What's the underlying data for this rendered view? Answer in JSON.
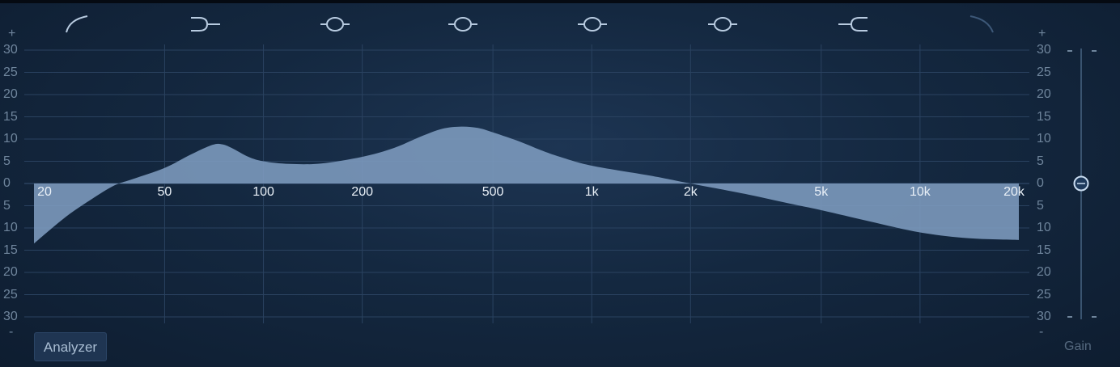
{
  "band_icons": [
    {
      "name": "low-cut-icon"
    },
    {
      "name": "low-shelf-icon"
    },
    {
      "name": "parametric-band-1-icon"
    },
    {
      "name": "parametric-band-2-icon"
    },
    {
      "name": "parametric-band-3-icon"
    },
    {
      "name": "parametric-band-4-icon"
    },
    {
      "name": "high-shelf-icon"
    },
    {
      "name": "high-cut-icon"
    }
  ],
  "db_scale": {
    "top_symbol": "+",
    "bottom_symbol": "-",
    "labels": [
      "30",
      "25",
      "20",
      "15",
      "10",
      "5",
      "0",
      "5",
      "10",
      "15",
      "20",
      "25",
      "30"
    ]
  },
  "freq_labels": [
    "20",
    "50",
    "100",
    "200",
    "500",
    "1k",
    "2k",
    "5k",
    "10k",
    "20k"
  ],
  "analyzer_button": "Analyzer",
  "gain_label": "Gain",
  "colors": {
    "curve_fill": "#7e9cbf",
    "grid": "#2a4260",
    "axis_text": "#6f859c",
    "freq_text": "#e9f0f7"
  },
  "chart_data": {
    "type": "area",
    "x_scale": "log",
    "xlim": [
      20,
      20000
    ],
    "ylim": [
      -30,
      30
    ],
    "x_ticks": [
      20,
      50,
      100,
      200,
      500,
      1000,
      2000,
      5000,
      10000,
      20000
    ],
    "curve": {
      "x": [
        20,
        25,
        30,
        35,
        40,
        50,
        60,
        70,
        75,
        80,
        90,
        100,
        120,
        150,
        200,
        250,
        300,
        350,
        400,
        450,
        500,
        600,
        700,
        800,
        1000,
        1500,
        2000,
        3000,
        4000,
        5000,
        7000,
        10000,
        14000,
        20000
      ],
      "y": [
        -13.5,
        -7.5,
        -3.5,
        -0.5,
        1.0,
        3.5,
        6.5,
        8.7,
        8.8,
        8.0,
        6.0,
        5.0,
        4.4,
        4.5,
        6.0,
        8.0,
        10.5,
        12.3,
        12.8,
        12.5,
        11.5,
        9.5,
        7.5,
        6.0,
        4.0,
        1.8,
        0.0,
        -2.5,
        -4.5,
        -6.0,
        -8.5,
        -11.0,
        -12.3,
        -12.7
      ]
    },
    "gain_db": 0
  }
}
